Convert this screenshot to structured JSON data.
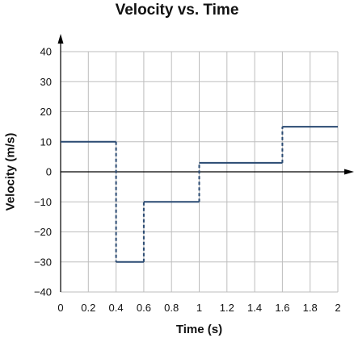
{
  "chart_data": {
    "type": "line",
    "title": "Velocity vs. Time",
    "xlabel": "Time (s)",
    "ylabel": "Velocity (m/s)",
    "xlim": [
      0,
      2
    ],
    "ylim": [
      -40,
      40
    ],
    "x_ticks": [
      0,
      0.2,
      0.4,
      0.6,
      0.8,
      1,
      1.2,
      1.4,
      1.6,
      1.8,
      2
    ],
    "x_tick_labels": [
      "0",
      "0.2",
      "0.4",
      "0.6",
      "0.8",
      "1",
      "1.2",
      "1.4",
      "1.6",
      "1.8",
      "2"
    ],
    "y_ticks": [
      -40,
      -30,
      -20,
      -10,
      0,
      10,
      20,
      30,
      40
    ],
    "y_tick_labels": [
      "−40",
      "−30",
      "−20",
      "−10",
      "0",
      "10",
      "20",
      "30",
      "40"
    ],
    "grid": true,
    "series": [
      {
        "style": "step",
        "segments": [
          {
            "x_start": 0,
            "x_end": 0.4,
            "y": 10
          },
          {
            "x_start": 0.4,
            "x_end": 0.6,
            "y": -30
          },
          {
            "x_start": 0.6,
            "x_end": 1,
            "y": -10
          },
          {
            "x_start": 1,
            "x_end": 1.6,
            "y": 3
          },
          {
            "x_start": 1.6,
            "x_end": 2,
            "y": 15
          }
        ]
      }
    ],
    "colors": {
      "line": "#2a4a72",
      "grid": "#bdbdbd",
      "axis": "#000000"
    }
  }
}
